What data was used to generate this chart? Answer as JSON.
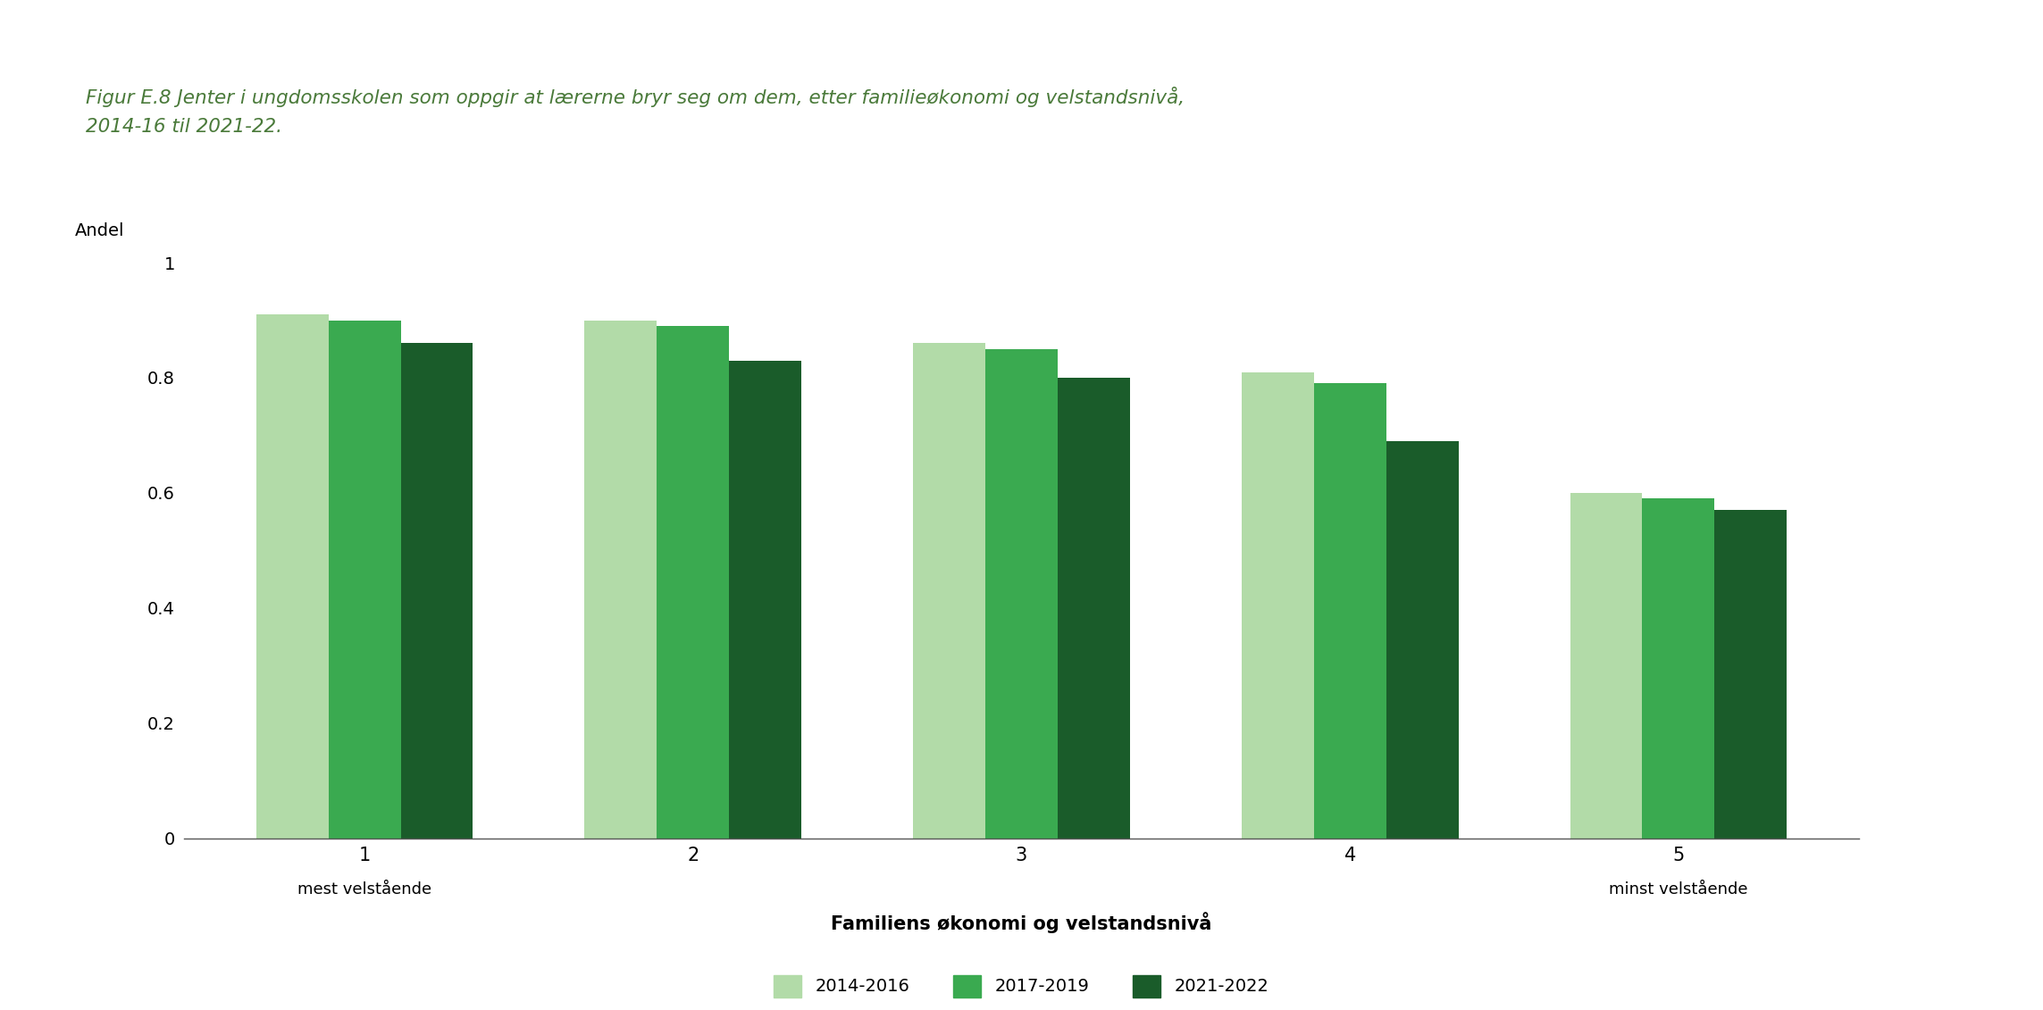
{
  "title_box_text": "Figur E.8 Jenter i ungdomsskolen som oppgir at lærerne bryr seg om dem, etter familieøkonomi og velstandsnivå,\n2014-16 til 2021-22.",
  "title_box_color": "#cfe2cc",
  "title_text_color": "#4a7a3a",
  "cat_labels_main": [
    "1",
    "2",
    "3",
    "4",
    "5"
  ],
  "cat_sublabels": [
    "mest velstående",
    "",
    "",
    "",
    "minst velstående"
  ],
  "series": {
    "2014-2016": [
      0.91,
      0.9,
      0.86,
      0.81,
      0.6
    ],
    "2017-2019": [
      0.9,
      0.89,
      0.85,
      0.79,
      0.59
    ],
    "2021-2022": [
      0.86,
      0.83,
      0.8,
      0.69,
      0.57
    ]
  },
  "series_order": [
    "2014-2016",
    "2017-2019",
    "2021-2022"
  ],
  "series_colors": {
    "2014-2016": "#b2dba8",
    "2017-2019": "#3aaa50",
    "2021-2022": "#1a5c2a"
  },
  "ylabel": "Andel",
  "xlabel": "Familiens økonomi og velstandsnivå",
  "ylim": [
    0,
    1.0
  ],
  "yticks": [
    0,
    0.2,
    0.4,
    0.6,
    0.8,
    1
  ],
  "background_color": "#ffffff",
  "bar_width": 0.22,
  "group_positions": [
    0,
    1,
    2,
    3,
    4
  ]
}
